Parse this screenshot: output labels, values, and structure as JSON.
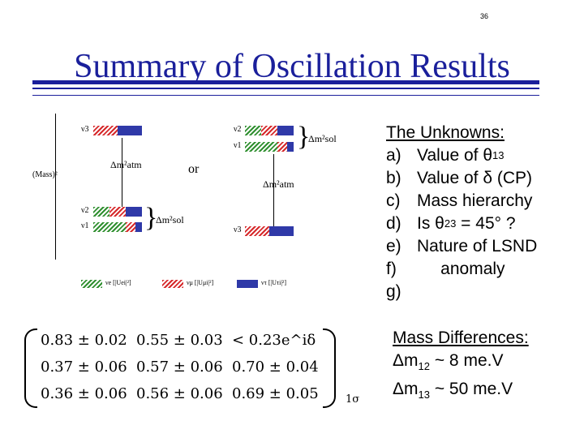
{
  "page_number": "36",
  "title": "Summary of Oscillation Results",
  "diagram": {
    "mass_label": "(Mass)²",
    "or_label": "or",
    "normal": {
      "nu3": "ν3",
      "nu2": "ν2",
      "nu1": "ν1",
      "atm": "Δm²atm",
      "sol": "Δm²sol"
    },
    "inverted": {
      "nu2": "ν2",
      "nu1": "ν1",
      "nu3": "ν3",
      "sol": "Δm²sol",
      "atm": "Δm²atm"
    },
    "legend": [
      {
        "label": "νe [|Uei|²]",
        "color": "#2f8f2f"
      },
      {
        "label": "νμ [|Uμi|²]",
        "color": "#d6292b"
      },
      {
        "label": "ντ [|Uτi|²]",
        "color": "#2f39a8"
      }
    ]
  },
  "unknowns": {
    "heading": "The Unknowns:",
    "items": [
      {
        "key": "a)",
        "text": "Value of θ",
        "sub": "13",
        "tail": ""
      },
      {
        "key": "b)",
        "text": "Value of δ (CP)",
        "sub": "",
        "tail": ""
      },
      {
        "key": "c)",
        "text": "Mass hierarchy",
        "sub": "",
        "tail": ""
      },
      {
        "key": "d)",
        "text": "Is θ",
        "sub": "23",
        "tail": " = 45° ?"
      },
      {
        "key": "e)",
        "text": "Nature of LSND",
        "sub": "",
        "tail": ""
      },
      {
        "key": "f)",
        "text": "     anomaly",
        "sub": "",
        "tail": ""
      },
      {
        "key": "g)",
        "text": "",
        "sub": "",
        "tail": ""
      }
    ]
  },
  "mass_differences": {
    "heading": "Mass Differences:",
    "lines": [
      {
        "prefix": "Δm",
        "sub": "12",
        "rest": " ~ 8 me.V"
      },
      {
        "prefix": "Δm",
        "sub": "13",
        "rest": " ~ 50 me.V"
      }
    ]
  },
  "matrix": {
    "rows": [
      [
        "0.83 ± 0.02",
        "0.55 ± 0.03",
        "< 0.23e^iδ"
      ],
      [
        "0.37 ± 0.06",
        "0.57 ± 0.06",
        "0.70 ± 0.04"
      ],
      [
        "0.36 ± 0.06",
        "0.56 ± 0.06",
        "0.69 ± 0.05"
      ]
    ],
    "sigma_label": "1σ"
  }
}
